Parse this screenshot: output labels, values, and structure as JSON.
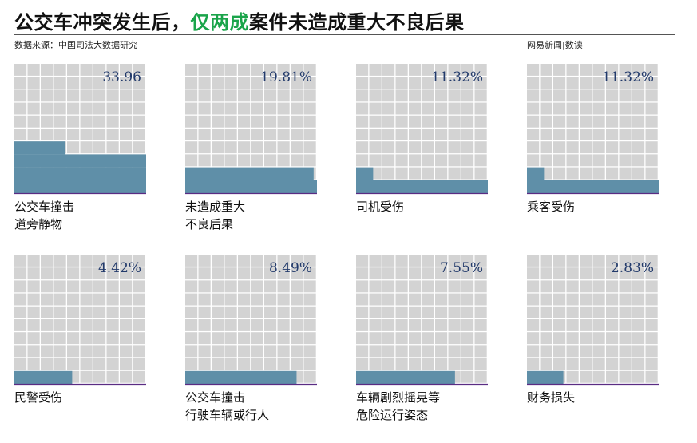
{
  "header": {
    "title_pre": "公交车冲突发生后，",
    "title_highlight": "仅两成",
    "title_post": "案件未造成重大不良后果",
    "source": "数据来源：中国司法大数据研究",
    "brand": "网易新闻|数读"
  },
  "colors": {
    "filled": "#5f8fa8",
    "empty": "#d3d3d3",
    "baseline": "#5a2c83",
    "value_text": "#223a6b",
    "highlight": "#1aa44a"
  },
  "chart_data": {
    "type": "waffle",
    "grid": "10x10",
    "unit": "%",
    "panels": [
      {
        "label_lines": [
          "公交车撞击",
          "道旁静物"
        ],
        "value": 33.96,
        "value_text": "33.96"
      },
      {
        "label_lines": [
          "未造成重大",
          "不良后果"
        ],
        "value": 19.81,
        "value_text": "19.81%"
      },
      {
        "label_lines": [
          "司机受伤"
        ],
        "value": 11.32,
        "value_text": "11.32%"
      },
      {
        "label_lines": [
          "乘客受伤"
        ],
        "value": 11.32,
        "value_text": "11.32%"
      },
      {
        "label_lines": [
          "民警受伤"
        ],
        "value": 4.42,
        "value_text": "4.42%"
      },
      {
        "label_lines": [
          "公交车撞击",
          "行驶车辆或行人"
        ],
        "value": 8.49,
        "value_text": "8.49%"
      },
      {
        "label_lines": [
          "车辆剧烈摇晃等",
          "危险运行姿态"
        ],
        "value": 7.55,
        "value_text": "7.55%"
      },
      {
        "label_lines": [
          "财务损失"
        ],
        "value": 2.83,
        "value_text": "2.83%"
      }
    ]
  }
}
